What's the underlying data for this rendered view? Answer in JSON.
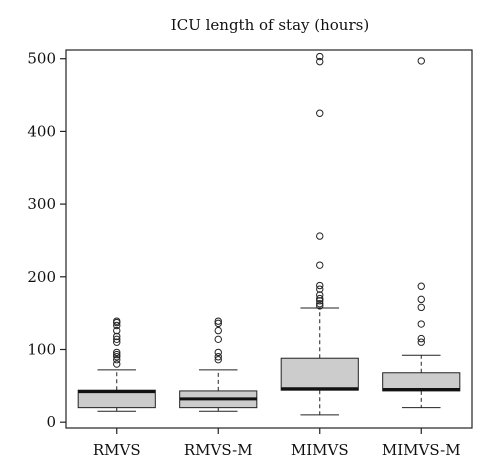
{
  "chart_data": {
    "type": "box",
    "title": "ICU length of stay (hours)",
    "xlabel": "",
    "ylabel": "",
    "ylim": [
      -8,
      512
    ],
    "yticks": [
      0,
      100,
      200,
      300,
      400,
      500
    ],
    "grid": false,
    "legend": "none",
    "colors": {
      "box_fill": "#cccccc",
      "stroke": "#222222",
      "median": "#111111"
    },
    "categories": [
      "RMVS",
      "RMVS-M",
      "MIMVS",
      "MIMVS-M"
    ],
    "boxes": [
      {
        "name": "RMVS",
        "min": 15,
        "q1": 20,
        "median": 42,
        "q3": 44,
        "max": 72,
        "outliers": [
          80,
          86,
          90,
          93,
          96,
          110,
          114,
          118,
          126,
          133,
          137,
          139
        ]
      },
      {
        "name": "RMVS-M",
        "min": 15,
        "q1": 20,
        "median": 32,
        "q3": 43,
        "max": 72,
        "outliers": [
          86,
          90,
          96,
          114,
          126,
          136,
          139
        ]
      },
      {
        "name": "MIMVS",
        "min": 10,
        "q1": 44,
        "median": 46,
        "q3": 88,
        "max": 157,
        "outliers": [
          160,
          163,
          167,
          170,
          175,
          183,
          188,
          216,
          256,
          425,
          496,
          503
        ]
      },
      {
        "name": "MIMVS-M",
        "min": 20,
        "q1": 43,
        "median": 45,
        "q3": 68,
        "max": 92,
        "outliers": [
          110,
          115,
          135,
          158,
          169,
          187,
          497
        ]
      }
    ]
  }
}
